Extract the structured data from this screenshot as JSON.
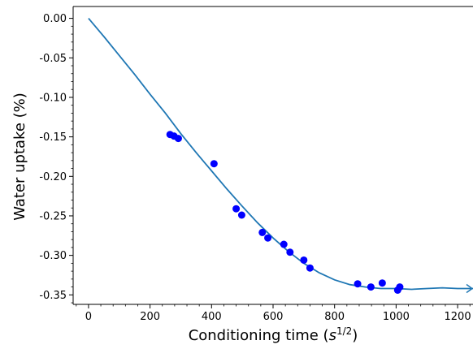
{
  "chart_data": {
    "type": "scatter",
    "xlabel": "Conditioning time",
    "xlabel_unit_base": "s",
    "xlabel_unit_exp": "1/2",
    "ylabel": "Water uptake (%)",
    "xlim": [
      -50,
      1250
    ],
    "ylim": [
      -0.362,
      0.015
    ],
    "x_ticks": [
      0,
      200,
      400,
      600,
      800,
      1000,
      1200
    ],
    "x_tick_labels": [
      "0",
      "200",
      "400",
      "600",
      "800",
      "1000",
      "1200"
    ],
    "y_ticks": [
      0.0,
      -0.05,
      -0.1,
      -0.15,
      -0.2,
      -0.25,
      -0.3,
      -0.35
    ],
    "y_tick_labels": [
      "0.00",
      "-0.05",
      "-0.10",
      "-0.15",
      "-0.20",
      "-0.25",
      "-0.30",
      "-0.35"
    ],
    "grid": false,
    "colors": {
      "points": "#0000ff",
      "line": "#1f77b4",
      "axes": "#000000"
    },
    "series": [
      {
        "kind": "scatter",
        "points": [
          {
            "x": 265,
            "y": -0.147
          },
          {
            "x": 278,
            "y": -0.149
          },
          {
            "x": 292,
            "y": -0.152
          },
          {
            "x": 408,
            "y": -0.184
          },
          {
            "x": 480,
            "y": -0.241
          },
          {
            "x": 498,
            "y": -0.249
          },
          {
            "x": 565,
            "y": -0.271
          },
          {
            "x": 583,
            "y": -0.278
          },
          {
            "x": 635,
            "y": -0.286
          },
          {
            "x": 655,
            "y": -0.296
          },
          {
            "x": 700,
            "y": -0.306
          },
          {
            "x": 720,
            "y": -0.316
          },
          {
            "x": 875,
            "y": -0.336
          },
          {
            "x": 918,
            "y": -0.34
          },
          {
            "x": 955,
            "y": -0.335
          },
          {
            "x": 1005,
            "y": -0.344
          },
          {
            "x": 1012,
            "y": -0.34
          }
        ]
      },
      {
        "kind": "line",
        "points": [
          {
            "x": 0,
            "y": 0.0
          },
          {
            "x": 50,
            "y": -0.023
          },
          {
            "x": 100,
            "y": -0.047
          },
          {
            "x": 150,
            "y": -0.071
          },
          {
            "x": 200,
            "y": -0.096
          },
          {
            "x": 250,
            "y": -0.12
          },
          {
            "x": 300,
            "y": -0.146
          },
          {
            "x": 350,
            "y": -0.17
          },
          {
            "x": 400,
            "y": -0.193
          },
          {
            "x": 450,
            "y": -0.216
          },
          {
            "x": 500,
            "y": -0.238
          },
          {
            "x": 550,
            "y": -0.259
          },
          {
            "x": 600,
            "y": -0.278
          },
          {
            "x": 650,
            "y": -0.295
          },
          {
            "x": 700,
            "y": -0.31
          },
          {
            "x": 750,
            "y": -0.322
          },
          {
            "x": 800,
            "y": -0.331
          },
          {
            "x": 850,
            "y": -0.337
          },
          {
            "x": 900,
            "y": -0.34
          },
          {
            "x": 950,
            "y": -0.342
          },
          {
            "x": 1000,
            "y": -0.342
          },
          {
            "x": 1050,
            "y": -0.343
          },
          {
            "x": 1100,
            "y": -0.342
          },
          {
            "x": 1150,
            "y": -0.341
          },
          {
            "x": 1200,
            "y": -0.342
          },
          {
            "x": 1250,
            "y": -0.342
          }
        ]
      }
    ]
  }
}
